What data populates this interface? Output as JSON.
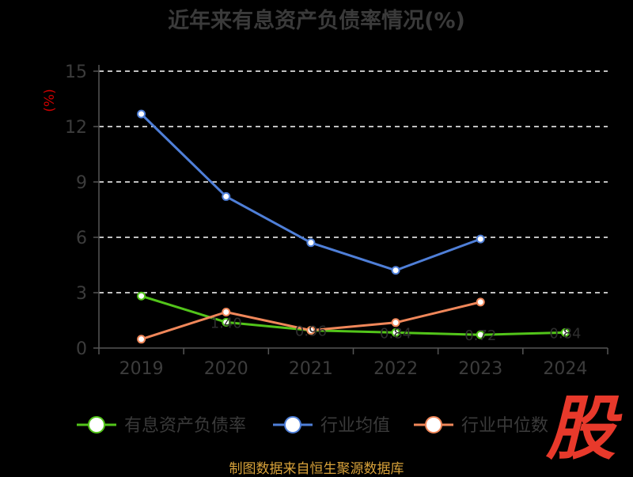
{
  "title": "近年来有息资产负债率情况(%)",
  "source_text": "制图数据来自恒生聚源数据库",
  "watermark_text": "股",
  "chart_data": {
    "type": "line",
    "title": "近年来有息资产负债率情况(%)",
    "ylabel": "(%)",
    "xlabel": "",
    "ylim": [
      0,
      15
    ],
    "yticks": [
      "0",
      "3",
      "6",
      "9",
      "12",
      "15"
    ],
    "grid": true,
    "legend_position": "bottom",
    "categories": [
      "2019",
      "2020",
      "2021",
      "2022",
      "2023",
      "2024"
    ],
    "series": [
      {
        "name": "有息资产负债率",
        "color": "#52c41a",
        "values": [
          2.82,
          1.4,
          0.96,
          0.84,
          0.72,
          0.84
        ],
        "labels": [
          "",
          "1.40",
          "0.96",
          "0.84",
          "0.72",
          "0.84"
        ]
      },
      {
        "name": "行业均值",
        "color": "#4f7fd8",
        "values": [
          12.68,
          8.21,
          5.71,
          4.21,
          5.91,
          null
        ],
        "labels": [
          "",
          "",
          "",
          "",
          "",
          ""
        ]
      },
      {
        "name": "行业中位数",
        "color": "#f0875a",
        "values": [
          0.48,
          1.95,
          0.96,
          1.38,
          2.49,
          null
        ],
        "labels": [
          "",
          "",
          "",
          "",
          "",
          ""
        ]
      }
    ]
  },
  "colors": {
    "axis": "#555555",
    "grid": "#ffffff",
    "tick_text": "#3c3c3c",
    "ylabel": "#cc0000"
  }
}
